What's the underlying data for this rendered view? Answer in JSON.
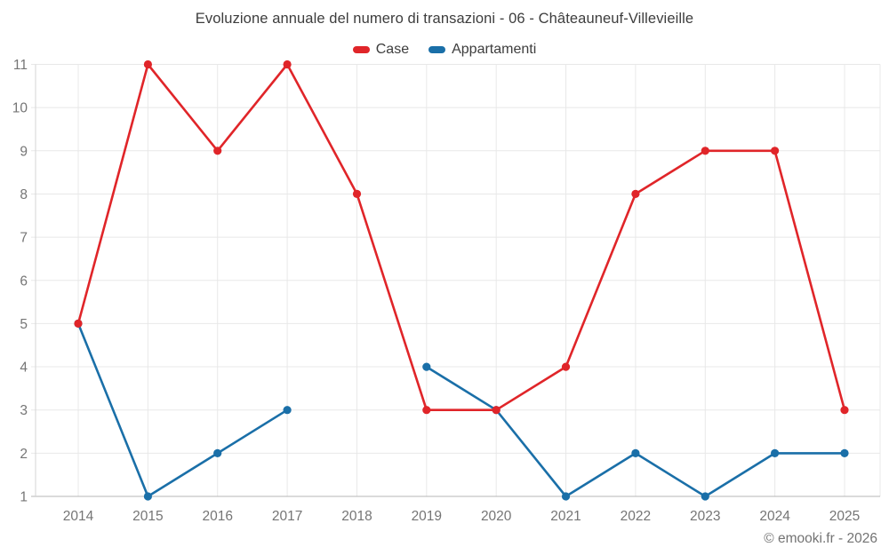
{
  "watermark": "© emooki.fr - 2026",
  "chart_data": {
    "type": "line",
    "title": "Evoluzione annuale del numero di transazioni - 06 - Châteauneuf-Villevieille",
    "categories": [
      "2014",
      "2015",
      "2016",
      "2017",
      "2018",
      "2019",
      "2020",
      "2021",
      "2022",
      "2023",
      "2024",
      "2025"
    ],
    "series": [
      {
        "name": "Case",
        "color": "#e02529",
        "values": [
          5,
          11,
          9,
          11,
          8,
          3,
          3,
          4,
          8,
          9,
          9,
          3
        ]
      },
      {
        "name": "Appartamenti",
        "color": "#1a6fa8",
        "values": [
          5,
          1,
          2,
          3,
          null,
          4,
          3,
          1,
          2,
          1,
          2,
          2
        ]
      }
    ],
    "xlabel": "",
    "ylabel": "",
    "ylim": [
      1,
      11
    ],
    "yticks": [
      1,
      2,
      3,
      4,
      5,
      6,
      7,
      8,
      9,
      10,
      11
    ],
    "grid": true,
    "legend_position": "top",
    "grid_color": "#e8e8e8",
    "axis_color": "#b6b6b6",
    "tick_label_color": "#757575"
  }
}
